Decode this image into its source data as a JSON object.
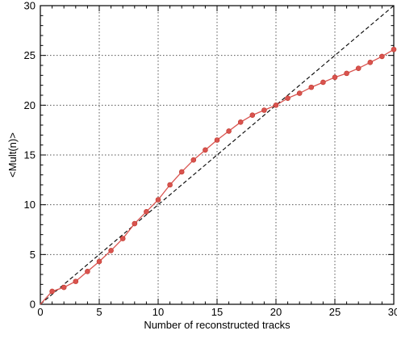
{
  "colors": {
    "series": "#d9534f",
    "series_stroke": "#c0392b",
    "reference": "#000000",
    "grid": "#555555",
    "axis": "#000000"
  },
  "chart_data": {
    "type": "line",
    "title": "",
    "xlabel": "Number of reconstructed tracks",
    "ylabel": "<Mult(n)>",
    "xlim": [
      0,
      30
    ],
    "ylim": [
      0,
      30
    ],
    "xticks": [
      0,
      5,
      10,
      15,
      20,
      25,
      30
    ],
    "yticks": [
      0,
      5,
      10,
      15,
      20,
      25,
      30
    ],
    "grid": true,
    "legend": "none",
    "series": [
      {
        "style": "red line with circle markers",
        "x": [
          0,
          1,
          2,
          3,
          4,
          5,
          6,
          7,
          8,
          9,
          10,
          11,
          12,
          13,
          14,
          15,
          16,
          17,
          18,
          19,
          20,
          21,
          22,
          23,
          24,
          25,
          26,
          27,
          28,
          29,
          30
        ],
        "y": [
          0,
          1.3,
          1.7,
          2.3,
          3.3,
          4.3,
          5.4,
          6.6,
          8.1,
          9.3,
          10.5,
          12.0,
          13.3,
          14.5,
          15.5,
          16.5,
          17.4,
          18.3,
          19.0,
          19.5,
          20.0,
          20.7,
          21.2,
          21.8,
          22.3,
          22.8,
          23.2,
          23.7,
          24.3,
          24.9,
          25.6
        ]
      },
      {
        "style": "black dashed reference line y = x",
        "x": [
          0,
          30
        ],
        "y": [
          0,
          30
        ]
      }
    ]
  }
}
